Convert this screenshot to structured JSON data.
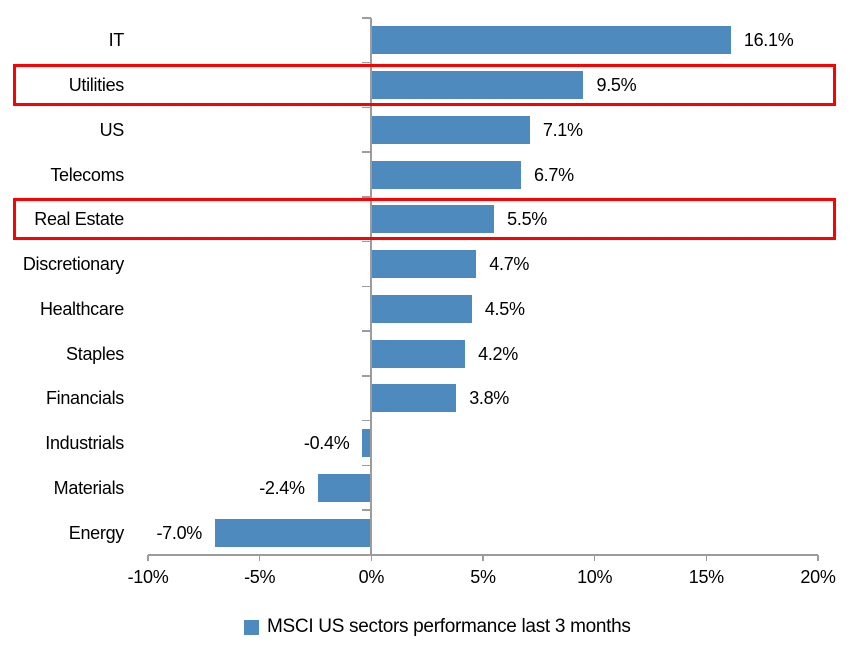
{
  "chart_data": {
    "type": "bar",
    "orientation": "horizontal",
    "title": "",
    "categories": [
      "IT",
      "Utilities",
      "US",
      "Telecoms",
      "Real Estate",
      "Discretionary",
      "Healthcare",
      "Staples",
      "Financials",
      "Industrials",
      "Materials",
      "Energy"
    ],
    "values": [
      16.1,
      9.5,
      7.1,
      6.7,
      5.5,
      4.7,
      4.5,
      4.2,
      3.8,
      -0.4,
      -2.4,
      -7.0
    ],
    "value_labels": [
      "16.1%",
      "9.5%",
      "7.1%",
      "6.7%",
      "5.5%",
      "4.7%",
      "4.5%",
      "4.2%",
      "3.8%",
      "-0.4%",
      "-2.4%",
      "-7.0%"
    ],
    "xlim": [
      -10,
      20
    ],
    "x_tick_values": [
      -10,
      -5,
      0,
      5,
      10,
      15,
      20
    ],
    "x_tick_labels": [
      "-10%",
      "-5%",
      "0%",
      "5%",
      "10%",
      "15%",
      "20%"
    ],
    "grid": false,
    "legend": {
      "position": "bottom",
      "label": "MSCI US sectors performance last 3 months"
    },
    "series_color": "#4E8ABD",
    "highlight": {
      "rows": [
        "Utilities",
        "Real Estate"
      ],
      "color": "#FF0000"
    }
  },
  "colors": {
    "axis": "#9C9C9C",
    "text": "#000000",
    "background": "#FFFFFF"
  }
}
